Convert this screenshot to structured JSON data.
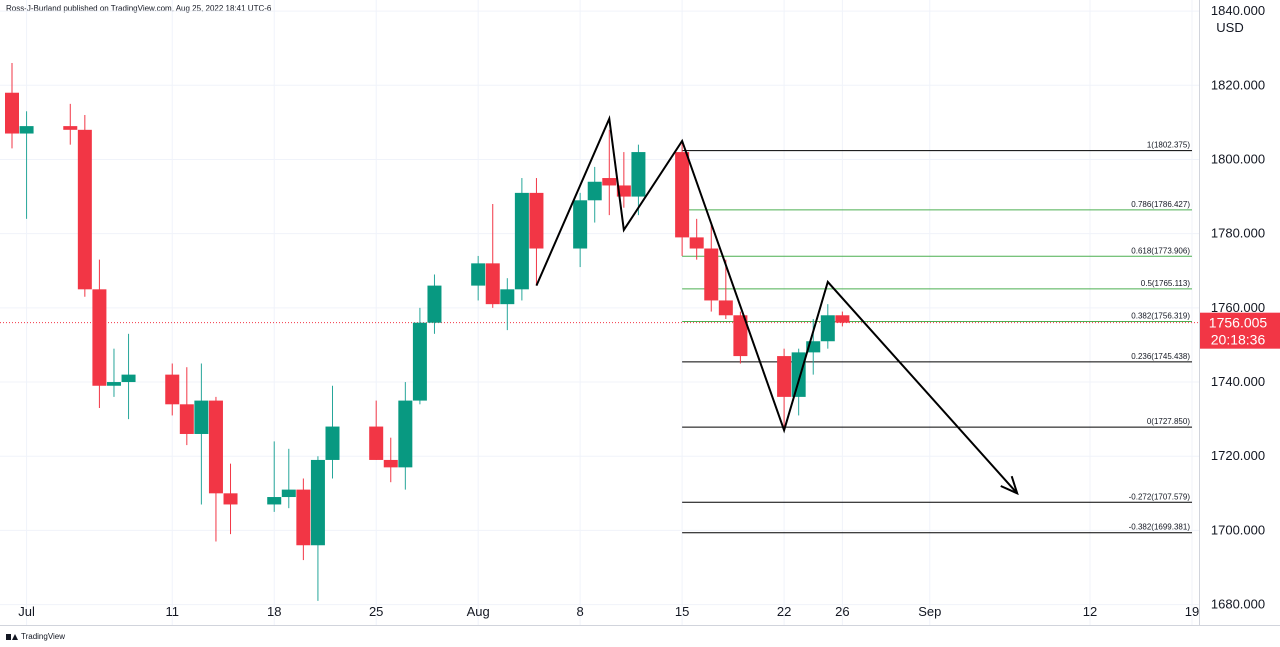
{
  "header": {
    "text": "Ross-J-Burland published on TradingView.com, Aug 25, 2022 18:41 UTC-6"
  },
  "footer": {
    "brand": "TradingView"
  },
  "colors": {
    "up": "#26a69a",
    "down": "#f23645",
    "up_body": "#089981",
    "down_body": "#f23645",
    "axis_text": "#131722",
    "fib": "#000000",
    "fib_mid": "#4caf50",
    "price_tag": "#f23645"
  },
  "chart_data": {
    "type": "candlestick",
    "currency": "USD",
    "y_ticks": [
      1680,
      1700,
      1720,
      1740,
      1760,
      1780,
      1800,
      1820,
      1840
    ],
    "y_tick_labels": [
      "1680.000",
      "1700.000",
      "1720.000",
      "1740.000",
      "1760.000",
      "1780.000",
      "1800.000",
      "1820.000",
      "1840.000"
    ],
    "ylim": [
      1674.5,
      1843
    ],
    "x_labels": [
      {
        "date": "2022-07-01",
        "label": "Jul"
      },
      {
        "date": "2022-07-11",
        "label": "11"
      },
      {
        "date": "2022-07-18",
        "label": "18"
      },
      {
        "date": "2022-07-25",
        "label": "25"
      },
      {
        "date": "2022-08-01",
        "label": "Aug"
      },
      {
        "date": "2022-08-08",
        "label": "8"
      },
      {
        "date": "2022-08-15",
        "label": "15"
      },
      {
        "date": "2022-08-22",
        "label": "22"
      },
      {
        "date": "2022-08-26",
        "label": "26"
      },
      {
        "date": "2022-09-01",
        "label": "Sep"
      },
      {
        "date": "2022-09-12",
        "label": "12"
      },
      {
        "date": "2022-09-19",
        "label": "19"
      }
    ],
    "xlim": [
      "2022-06-30",
      "2022-09-19"
    ],
    "candles": [
      {
        "date": "2022-06-30",
        "o": 1818,
        "h": 1826,
        "l": 1803,
        "c": 1807
      },
      {
        "date": "2022-07-01",
        "o": 1807,
        "h": 1813,
        "l": 1784,
        "c": 1809
      },
      {
        "date": "2022-07-04",
        "o": 1809,
        "h": 1815,
        "l": 1804,
        "c": 1808
      },
      {
        "date": "2022-07-05",
        "o": 1808,
        "h": 1812,
        "l": 1763,
        "c": 1765
      },
      {
        "date": "2022-07-06",
        "o": 1765,
        "h": 1773,
        "l": 1733,
        "c": 1739
      },
      {
        "date": "2022-07-07",
        "o": 1739,
        "h": 1749,
        "l": 1736,
        "c": 1740
      },
      {
        "date": "2022-07-08",
        "o": 1740,
        "h": 1753,
        "l": 1730,
        "c": 1742
      },
      {
        "date": "2022-07-11",
        "o": 1742,
        "h": 1745,
        "l": 1731,
        "c": 1734
      },
      {
        "date": "2022-07-12",
        "o": 1734,
        "h": 1744,
        "l": 1723,
        "c": 1726
      },
      {
        "date": "2022-07-13",
        "o": 1726,
        "h": 1745,
        "l": 1707,
        "c": 1735
      },
      {
        "date": "2022-07-14",
        "o": 1735,
        "h": 1736,
        "l": 1697,
        "c": 1710
      },
      {
        "date": "2022-07-15",
        "o": 1710,
        "h": 1718,
        "l": 1699,
        "c": 1707
      },
      {
        "date": "2022-07-18",
        "o": 1707,
        "h": 1724,
        "l": 1705,
        "c": 1709
      },
      {
        "date": "2022-07-19",
        "o": 1709,
        "h": 1722,
        "l": 1706,
        "c": 1711
      },
      {
        "date": "2022-07-20",
        "o": 1711,
        "h": 1714,
        "l": 1692,
        "c": 1696
      },
      {
        "date": "2022-07-21",
        "o": 1696,
        "h": 1720,
        "l": 1681,
        "c": 1719
      },
      {
        "date": "2022-07-22",
        "o": 1719,
        "h": 1739,
        "l": 1714,
        "c": 1728
      },
      {
        "date": "2022-07-25",
        "o": 1728,
        "h": 1735,
        "l": 1719,
        "c": 1719
      },
      {
        "date": "2022-07-26",
        "o": 1719,
        "h": 1725,
        "l": 1713,
        "c": 1717
      },
      {
        "date": "2022-07-27",
        "o": 1717,
        "h": 1740,
        "l": 1711,
        "c": 1735
      },
      {
        "date": "2022-07-28",
        "o": 1735,
        "h": 1760,
        "l": 1734,
        "c": 1756
      },
      {
        "date": "2022-07-29",
        "o": 1756,
        "h": 1769,
        "l": 1753,
        "c": 1766
      },
      {
        "date": "2022-08-01",
        "o": 1766,
        "h": 1774,
        "l": 1762,
        "c": 1772
      },
      {
        "date": "2022-08-02",
        "o": 1772,
        "h": 1788,
        "l": 1760,
        "c": 1761
      },
      {
        "date": "2022-08-03",
        "o": 1761,
        "h": 1768,
        "l": 1754,
        "c": 1765
      },
      {
        "date": "2022-08-04",
        "o": 1765,
        "h": 1795,
        "l": 1762,
        "c": 1791
      },
      {
        "date": "2022-08-05",
        "o": 1791,
        "h": 1795,
        "l": 1766,
        "c": 1776
      },
      {
        "date": "2022-08-08",
        "o": 1776,
        "h": 1791,
        "l": 1771,
        "c": 1789
      },
      {
        "date": "2022-08-09",
        "o": 1789,
        "h": 1798,
        "l": 1783,
        "c": 1794
      },
      {
        "date": "2022-08-10",
        "o": 1795,
        "h": 1808,
        "l": 1785,
        "c": 1793
      },
      {
        "date": "2022-08-11",
        "o": 1793,
        "h": 1802,
        "l": 1787,
        "c": 1790
      },
      {
        "date": "2022-08-12",
        "o": 1790,
        "h": 1804,
        "l": 1785,
        "c": 1802
      },
      {
        "date": "2022-08-15",
        "o": 1802,
        "h": 1805,
        "l": 1774,
        "c": 1779
      },
      {
        "date": "2022-08-16",
        "o": 1779,
        "h": 1784,
        "l": 1773,
        "c": 1776
      },
      {
        "date": "2022-08-17",
        "o": 1776,
        "h": 1783,
        "l": 1759,
        "c": 1762
      },
      {
        "date": "2022-08-18",
        "o": 1762,
        "h": 1773,
        "l": 1757,
        "c": 1758
      },
      {
        "date": "2022-08-19",
        "o": 1758,
        "h": 1759,
        "l": 1745,
        "c": 1747
      },
      {
        "date": "2022-08-22",
        "o": 1747,
        "h": 1749,
        "l": 1727,
        "c": 1736
      },
      {
        "date": "2022-08-23",
        "o": 1736,
        "h": 1749,
        "l": 1731,
        "c": 1748
      },
      {
        "date": "2022-08-24",
        "o": 1748,
        "h": 1757,
        "l": 1742,
        "c": 1751
      },
      {
        "date": "2022-08-25",
        "o": 1751,
        "h": 1761,
        "l": 1749,
        "c": 1758
      },
      {
        "date": "2022-08-26",
        "o": 1758,
        "h": 1759,
        "l": 1755,
        "c": 1756.005
      }
    ],
    "current_price": {
      "value": 1756.005,
      "label": "1756.005",
      "countdown": "20:18:36"
    },
    "fib_retracement": {
      "start_date": "2022-08-15",
      "end_date": "2022-09-19",
      "levels": [
        {
          "value": 1802.375,
          "label": "1(1802.375)",
          "color": "#000000"
        },
        {
          "value": 1786.427,
          "label": "0.786(1786.427)",
          "color": "#4caf50"
        },
        {
          "value": 1773.906,
          "label": "0.618(1773.906)",
          "color": "#4caf50"
        },
        {
          "value": 1765.113,
          "label": "0.5(1765.113)",
          "color": "#4caf50"
        },
        {
          "value": 1756.319,
          "label": "0.382(1756.319)",
          "color": "#4caf50"
        },
        {
          "value": 1745.438,
          "label": "0.236(1745.438)",
          "color": "#000000"
        },
        {
          "value": 1727.85,
          "label": "0(1727.850)",
          "color": "#000000"
        },
        {
          "value": 1707.579,
          "label": "-0.272(1707.579)",
          "color": "#000000"
        },
        {
          "value": 1699.381,
          "label": "-0.382(1699.381)",
          "color": "#000000"
        }
      ]
    },
    "drawings": {
      "zigzag": [
        {
          "date": "2022-08-05",
          "price": 1766
        },
        {
          "date": "2022-08-10",
          "price": 1811
        },
        {
          "date": "2022-08-11",
          "price": 1781
        },
        {
          "date": "2022-08-15",
          "price": 1805
        },
        {
          "date": "2022-08-22",
          "price": 1727
        },
        {
          "date": "2022-08-25",
          "price": 1767
        },
        {
          "date": "2022-09-07",
          "price": 1710
        }
      ]
    }
  }
}
